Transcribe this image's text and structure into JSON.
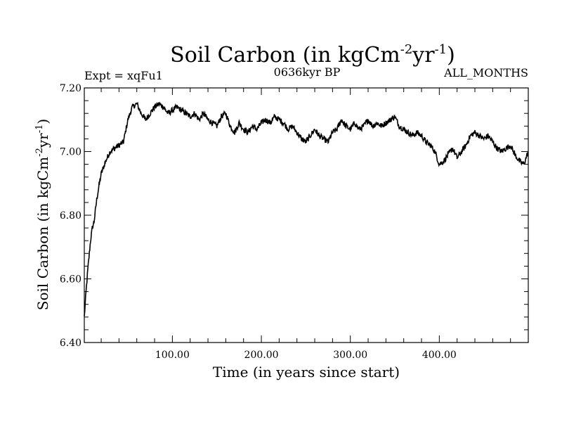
{
  "chart_data": {
    "type": "line",
    "title_main": "Soil Carbon (in kgCm",
    "title_sup1": "-2",
    "title_mid": "yr",
    "title_sup2": "-1",
    "title_end": ")",
    "expt_label": "Expt = xqFu1",
    "period_label": "0636kyr BP",
    "months_label": "ALL_MONTHS",
    "xlabel": "Time (in years since start)",
    "ylabel_main": "Soil Carbon (in kgCm",
    "ylabel_sup1": "-2",
    "ylabel_mid": "yr",
    "ylabel_sup2": "-1",
    "ylabel_end": ")",
    "xlim": [
      1,
      500
    ],
    "ylim": [
      6.4,
      7.2
    ],
    "x_ticks": [
      100,
      200,
      300,
      400
    ],
    "x_tick_labels": [
      "100.00",
      "200.00",
      "300.00",
      "400.00"
    ],
    "y_ticks": [
      6.4,
      6.6,
      6.8,
      7.0,
      7.2
    ],
    "y_tick_labels": [
      "6.40",
      "6.60",
      "6.80",
      "7.00",
      "7.20"
    ],
    "series": [
      {
        "name": "Soil Carbon",
        "color": "#000000",
        "anchors": [
          [
            1,
            6.48
          ],
          [
            3,
            6.56
          ],
          [
            5,
            6.63
          ],
          [
            8,
            6.72
          ],
          [
            10,
            6.76
          ],
          [
            12,
            6.78
          ],
          [
            15,
            6.85
          ],
          [
            18,
            6.9
          ],
          [
            20,
            6.93
          ],
          [
            25,
            6.97
          ],
          [
            30,
            7.0
          ],
          [
            35,
            7.01
          ],
          [
            40,
            7.02
          ],
          [
            45,
            7.03
          ],
          [
            50,
            7.1
          ],
          [
            55,
            7.14
          ],
          [
            60,
            7.15
          ],
          [
            65,
            7.12
          ],
          [
            70,
            7.1
          ],
          [
            75,
            7.12
          ],
          [
            80,
            7.14
          ],
          [
            85,
            7.15
          ],
          [
            90,
            7.14
          ],
          [
            95,
            7.12
          ],
          [
            100,
            7.13
          ],
          [
            105,
            7.14
          ],
          [
            110,
            7.13
          ],
          [
            115,
            7.12
          ],
          [
            120,
            7.11
          ],
          [
            125,
            7.12
          ],
          [
            130,
            7.1
          ],
          [
            135,
            7.12
          ],
          [
            140,
            7.1
          ],
          [
            145,
            7.09
          ],
          [
            150,
            7.08
          ],
          [
            155,
            7.11
          ],
          [
            160,
            7.12
          ],
          [
            165,
            7.08
          ],
          [
            170,
            7.06
          ],
          [
            175,
            7.09
          ],
          [
            180,
            7.07
          ],
          [
            185,
            7.06
          ],
          [
            190,
            7.08
          ],
          [
            195,
            7.07
          ],
          [
            200,
            7.09
          ],
          [
            205,
            7.1
          ],
          [
            210,
            7.09
          ],
          [
            215,
            7.11
          ],
          [
            220,
            7.1
          ],
          [
            225,
            7.09
          ],
          [
            230,
            7.07
          ],
          [
            235,
            7.08
          ],
          [
            240,
            7.06
          ],
          [
            245,
            7.04
          ],
          [
            250,
            7.03
          ],
          [
            255,
            7.05
          ],
          [
            260,
            7.07
          ],
          [
            265,
            7.05
          ],
          [
            270,
            7.04
          ],
          [
            275,
            7.03
          ],
          [
            280,
            7.06
          ],
          [
            285,
            7.07
          ],
          [
            290,
            7.1
          ],
          [
            295,
            7.08
          ],
          [
            300,
            7.07
          ],
          [
            305,
            7.09
          ],
          [
            310,
            7.07
          ],
          [
            315,
            7.08
          ],
          [
            320,
            7.1
          ],
          [
            325,
            7.08
          ],
          [
            330,
            7.09
          ],
          [
            335,
            7.08
          ],
          [
            340,
            7.09
          ],
          [
            345,
            7.1
          ],
          [
            350,
            7.11
          ],
          [
            355,
            7.08
          ],
          [
            360,
            7.07
          ],
          [
            365,
            7.06
          ],
          [
            370,
            7.05
          ],
          [
            375,
            7.06
          ],
          [
            380,
            7.05
          ],
          [
            385,
            7.03
          ],
          [
            390,
            7.02
          ],
          [
            395,
            7.0
          ],
          [
            400,
            6.96
          ],
          [
            405,
            6.97
          ],
          [
            410,
            6.99
          ],
          [
            415,
            7.01
          ],
          [
            420,
            6.98
          ],
          [
            425,
            7.0
          ],
          [
            430,
            7.02
          ],
          [
            435,
            7.05
          ],
          [
            440,
            7.06
          ],
          [
            445,
            7.05
          ],
          [
            450,
            7.04
          ],
          [
            455,
            7.05
          ],
          [
            460,
            7.03
          ],
          [
            465,
            7.01
          ],
          [
            470,
            7.0
          ],
          [
            475,
            7.01
          ],
          [
            480,
            7.02
          ],
          [
            485,
            6.99
          ],
          [
            490,
            6.97
          ],
          [
            495,
            6.96
          ],
          [
            500,
            7.0
          ]
        ]
      }
    ]
  }
}
